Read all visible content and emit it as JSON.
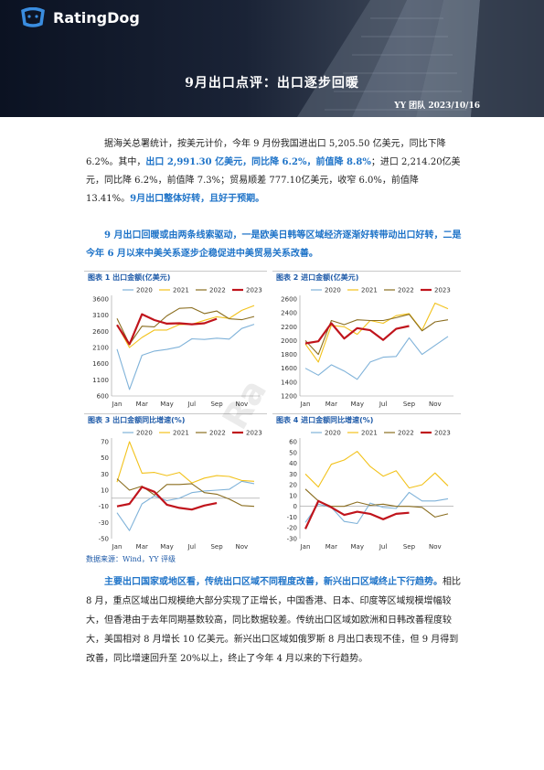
{
  "header": {
    "brand": "RatingDog",
    "title": "9月出口点评：出口逐步回暖",
    "byline": "YY 团队 2023/10/16"
  },
  "intro": {
    "p1": "据海关总署统计，按美元计价，今年 9 月份我国进出口 5,205.50 亿美元，同比下降 6.2%。其中，",
    "p1_blue": "出口 2,991.30 亿美元，同比降 6.2%，前值降 8.8%",
    "p1_b": "；进口 2,214.20亿美元，同比降 6.2%，前值降 7.3%；贸易顺差 777.10亿美元，收窄 6.0%，前值降 13.41%。",
    "p1_blue2": "9月出口整体好转，且好于预期。",
    "p2": "9 月出口回暖或由两条线索驱动，一是欧美日韩等区域经济逐渐好转带动出口好转，二是今年 6 月以来中美关系逐步企稳促进中美贸易关系改善。"
  },
  "source": "数据来源：Wind，YY 评级",
  "watermark": "Ra",
  "outro": {
    "lead": "主要出口国家或地区看，传统出口区域不同程度改善，新兴出口区域终止下行趋势。",
    "body": "相比 8 月，重点区域出口规模绝大部分实现了正增长，中国香港、日本、印度等区域规模增幅较大，但香港由于去年同期基数较高，同比数据较差。传统出口区域如欧洲和日韩改善程度较大，美国相对 8 月增长 10 亿美元。新兴出口区域如俄罗斯 8 月出口表现不佳，但 9 月得到改善，同比增速回升至 20%以上，终止了今年 4 月以来的下行趋势。"
  },
  "colors": {
    "2020": "#7fb2d9",
    "2021": "#f2c21b",
    "2022": "#8a6d1f",
    "2023": "#c0141c"
  },
  "months": [
    "Jan",
    "Feb",
    "Mar",
    "Apr",
    "May",
    "Jun",
    "Jul",
    "Aug",
    "Sep",
    "Oct",
    "Nov",
    "Dec"
  ],
  "x_ticks": [
    "Jan",
    "Mar",
    "May",
    "Jul",
    "Sep",
    "Nov"
  ],
  "chart_data": [
    {
      "type": "line",
      "title": "图表 1 出口金额(亿美元)",
      "ylim": [
        600,
        3600
      ],
      "yticks": [
        600,
        1100,
        1600,
        2100,
        2600,
        3100,
        3600
      ],
      "legend": "top",
      "series": [
        {
          "name": "2020",
          "values": [
            2050,
            800,
            1860,
            1990,
            2040,
            2120,
            2370,
            2350,
            2390,
            2360,
            2690,
            2820
          ]
        },
        {
          "name": "2021",
          "values": [
            2800,
            2100,
            2410,
            2640,
            2640,
            2810,
            2820,
            2940,
            3050,
            3000,
            3250,
            3400
          ]
        },
        {
          "name": "2022",
          "values": [
            3000,
            2200,
            2760,
            2740,
            3080,
            3310,
            3330,
            3150,
            3230,
            2990,
            2960,
            3060
          ]
        },
        {
          "name": "2023",
          "values": [
            2800,
            2200,
            3130,
            2950,
            2840,
            2850,
            2820,
            2850,
            2990
          ]
        }
      ]
    },
    {
      "type": "line",
      "title": "图表 2 进口金额(亿美元)",
      "ylim": [
        1200,
        2600
      ],
      "yticks": [
        1200,
        1400,
        1600,
        1800,
        2000,
        2200,
        2400,
        2600
      ],
      "legend": "top",
      "series": [
        {
          "name": "2020",
          "values": [
            1600,
            1500,
            1650,
            1560,
            1440,
            1690,
            1760,
            1770,
            2040,
            1800,
            1930,
            2060
          ]
        },
        {
          "name": "2021",
          "values": [
            1950,
            1690,
            2220,
            2200,
            2090,
            2290,
            2250,
            2360,
            2390,
            2150,
            2540,
            2460
          ]
        },
        {
          "name": "2022",
          "values": [
            2000,
            1800,
            2290,
            2230,
            2300,
            2290,
            2290,
            2330,
            2380,
            2140,
            2270,
            2300
          ]
        },
        {
          "name": "2023",
          "values": [
            1960,
            1990,
            2250,
            2030,
            2180,
            2150,
            2010,
            2170,
            2210
          ]
        }
      ]
    },
    {
      "type": "line",
      "title": "图表 3 出口金额同比增速(%)",
      "ylim": [
        -50,
        70
      ],
      "yticks": [
        -50,
        -30,
        -10,
        10,
        30,
        50,
        70
      ],
      "legend": "top",
      "series": [
        {
          "name": "2020",
          "values": [
            -18,
            -40,
            -7,
            3,
            -3,
            0,
            7,
            9,
            10,
            11,
            21,
            18
          ]
        },
        {
          "name": "2021",
          "values": [
            20,
            70,
            31,
            32,
            28,
            32,
            19,
            25,
            28,
            27,
            22,
            21
          ]
        },
        {
          "name": "2022",
          "values": [
            24,
            10,
            15,
            4,
            17,
            17,
            18,
            7,
            5,
            -1,
            -9,
            -10
          ]
        },
        {
          "name": "2023",
          "values": [
            -10,
            -7,
            14,
            8,
            -8,
            -12,
            -14,
            -9,
            -6
          ]
        }
      ]
    },
    {
      "type": "line",
      "title": "图表 4 进口金额同比增速(%)",
      "ylim": [
        -30,
        60
      ],
      "yticks": [
        -30,
        -20,
        -10,
        0,
        10,
        20,
        30,
        40,
        50,
        60
      ],
      "legend": "top",
      "series": [
        {
          "name": "2020",
          "values": [
            -15,
            2,
            -1,
            -14,
            -16,
            3,
            -1,
            -2,
            13,
            5,
            5,
            7
          ]
        },
        {
          "name": "2021",
          "values": [
            30,
            18,
            39,
            43,
            51,
            37,
            28,
            33,
            17,
            20,
            31,
            19
          ]
        },
        {
          "name": "2022",
          "values": [
            16,
            5,
            0,
            0,
            4,
            1,
            2,
            0,
            0,
            -1,
            -10,
            -7
          ]
        },
        {
          "name": "2023",
          "values": [
            -21,
            5,
            -1,
            -8,
            -5,
            -7,
            -12,
            -7,
            -6
          ]
        }
      ]
    }
  ]
}
